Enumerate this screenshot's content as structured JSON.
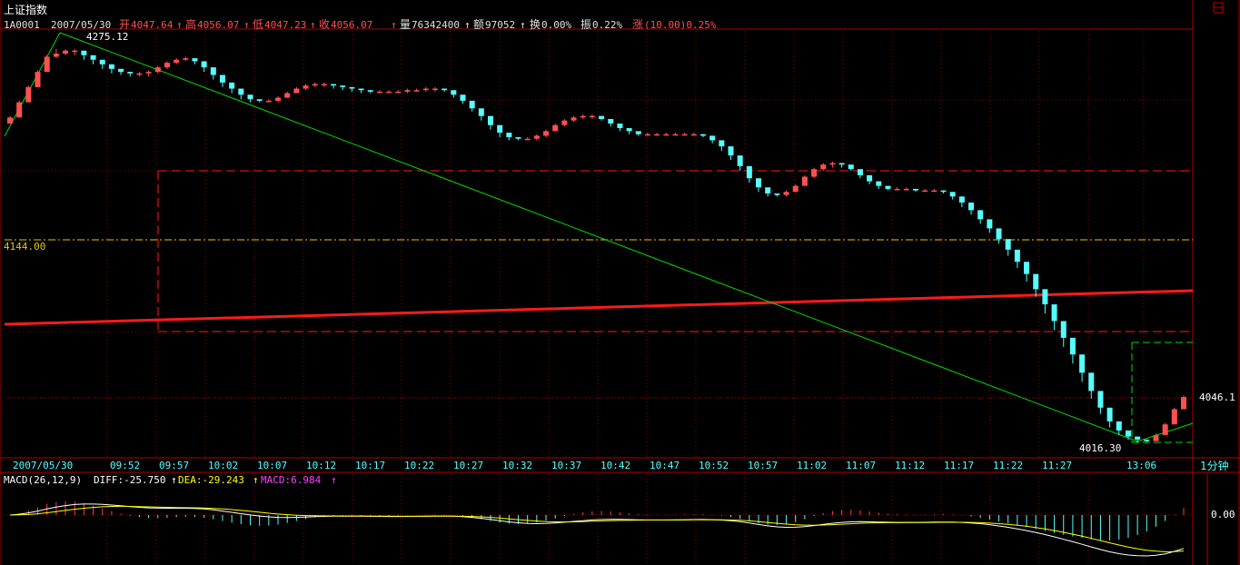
{
  "window": {
    "title": "上证指数",
    "corner_icon": "window-restore-icon",
    "period": "1分钟"
  },
  "header": {
    "code": "1A0001",
    "date": "2007/05/30",
    "open_label": "开",
    "open": "4047.64",
    "open_arrow": "↑",
    "high_label": "高",
    "high": "4056.07",
    "high_arrow": "↑",
    "low_label": "低",
    "low": "4047.23",
    "low_arrow": "↑",
    "close_label": "收",
    "close": "4056.07",
    "close_arrow": "↑",
    "volume_label": "量",
    "volume": "76342400",
    "volume_arrow": "↑",
    "amount_label": "额",
    "amount": "97052",
    "amount_arrow": "↑",
    "turnover_label": "换",
    "turnover": "0.00%",
    "amplitude_label": "振",
    "amplitude": "0.22%",
    "change_label": "涨",
    "change": "(10.00)0.25%"
  },
  "colors": {
    "up": "#ff5050",
    "down": "#54ffff",
    "frame": "#b00000",
    "grid": "#8b0000",
    "axis_text": "#54ffff",
    "trendline": "#00dd00",
    "channel": "#ff1a1a",
    "level": "#e6c800",
    "white_line": "#ffffff",
    "yellow_line": "#ffff00",
    "macd_up": "#ff4040",
    "macd_down": "#54ffff",
    "magenta": "#ff40ff"
  },
  "main": {
    "y_label_left": "4144.00",
    "y_label_right": "4046.1",
    "peak_label": "4275.12",
    "trough_label": "4016.30"
  },
  "chart_data": [
    {
      "type": "candlestick",
      "title": "上证指数",
      "x_tick_labels": [
        "2007/05/30",
        "09:52",
        "09:57",
        "10:02",
        "10:07",
        "10:12",
        "10:17",
        "10:22",
        "10:27",
        "10:32",
        "10:37",
        "10:42",
        "10:47",
        "10:52",
        "10:57",
        "11:02",
        "11:07",
        "11:12",
        "11:17",
        "11:22",
        "11:27",
        "13:06"
      ],
      "ylim": [
        4006,
        4287
      ],
      "closes": [
        4230,
        4240,
        4250,
        4260,
        4270,
        4272,
        4274,
        4274,
        4271,
        4268,
        4265,
        4262,
        4260,
        4259,
        4259,
        4260,
        4263,
        4266,
        4268,
        4269,
        4267,
        4263,
        4258,
        4253,
        4249,
        4245,
        4242,
        4241,
        4241,
        4243,
        4246,
        4249,
        4251,
        4252,
        4252,
        4251,
        4250,
        4249,
        4248,
        4247,
        4247,
        4247,
        4247,
        4248,
        4248,
        4249,
        4249,
        4248,
        4245,
        4241,
        4236,
        4231,
        4225,
        4220,
        4217,
        4216,
        4216,
        4218,
        4221,
        4225,
        4228,
        4230,
        4231,
        4231,
        4229,
        4226,
        4223,
        4221,
        4219,
        4219,
        4219,
        4219,
        4219,
        4219,
        4219,
        4218,
        4215,
        4211,
        4205,
        4198,
        4190,
        4184,
        4180,
        4179,
        4181,
        4185,
        4191,
        4196,
        4199,
        4200,
        4199,
        4196,
        4192,
        4188,
        4185,
        4183,
        4183,
        4183,
        4182,
        4182,
        4182,
        4181,
        4178,
        4174,
        4169,
        4163,
        4157,
        4150,
        4143,
        4135,
        4127,
        4117,
        4107,
        4096,
        4085,
        4074,
        4062,
        4050,
        4039,
        4030,
        4024,
        4020,
        4018,
        4017,
        4021,
        4028,
        4038,
        4046
      ],
      "highs": [
        4231,
        4241,
        4251,
        4261,
        4271,
        4275.12,
        4275,
        4275,
        4272,
        4269,
        4266,
        4263,
        4261,
        4260,
        4260,
        4261,
        4264,
        4267,
        4269,
        4270,
        4268,
        4264,
        4259,
        4254,
        4250,
        4246,
        4243,
        4242,
        4242,
        4244,
        4247,
        4250,
        4252,
        4253,
        4253,
        4252,
        4251,
        4250,
        4249,
        4248,
        4248,
        4248,
        4248,
        4249,
        4249,
        4250,
        4250,
        4249,
        4246,
        4242,
        4237,
        4232,
        4226,
        4221,
        4218,
        4217,
        4217,
        4219,
        4222,
        4226,
        4229,
        4231,
        4232,
        4232,
        4230,
        4227,
        4224,
        4222,
        4220,
        4220,
        4220,
        4220,
        4220,
        4220,
        4220,
        4219,
        4216,
        4212,
        4206,
        4199,
        4191,
        4185,
        4181,
        4180,
        4182,
        4186,
        4192,
        4197,
        4200,
        4201,
        4200,
        4197,
        4193,
        4189,
        4186,
        4184,
        4184,
        4184,
        4183,
        4183,
        4183,
        4182,
        4179,
        4175,
        4170,
        4164,
        4158,
        4151,
        4144,
        4136,
        4128,
        4118,
        4108,
        4097,
        4086,
        4075,
        4063,
        4051,
        4040,
        4031,
        4025,
        4021,
        4019,
        4018,
        4022,
        4029,
        4039,
        4047
      ],
      "lows": [
        4226,
        4233,
        4243,
        4252,
        4262,
        4269,
        4271,
        4271,
        4268,
        4265,
        4262,
        4259,
        4258,
        4257,
        4257,
        4257,
        4259,
        4262,
        4265,
        4267,
        4265,
        4260,
        4255,
        4250,
        4246,
        4242,
        4240,
        4240,
        4240,
        4240,
        4243,
        4246,
        4248,
        4250,
        4250,
        4249,
        4248,
        4247,
        4246,
        4246,
        4246,
        4246,
        4246,
        4246,
        4247,
        4247,
        4247,
        4247,
        4243,
        4239,
        4234,
        4228,
        4222,
        4217,
        4215,
        4215,
        4215,
        4215,
        4217,
        4221,
        4224,
        4227,
        4229,
        4229,
        4228,
        4224,
        4221,
        4219,
        4218,
        4218,
        4218,
        4218,
        4218,
        4218,
        4218,
        4217,
        4213,
        4208,
        4202,
        4195,
        4187,
        4181,
        4178,
        4178,
        4178,
        4181,
        4185,
        4190,
        4195,
        4197,
        4197,
        4195,
        4190,
        4186,
        4183,
        4182,
        4182,
        4182,
        4181,
        4181,
        4181,
        4180,
        4176,
        4171,
        4166,
        4160,
        4154,
        4147,
        4139,
        4131,
        4122,
        4112,
        4101,
        4090,
        4079,
        4068,
        4056,
        4045,
        4035,
        4026,
        4021,
        4018,
        4016.3,
        4016.3,
        4017,
        4021,
        4028,
        4038
      ]
    },
    {
      "type": "line",
      "title": "MACD(26,12,9)",
      "legend": [
        "DIFF:-25.750",
        "DEA:-29.243",
        "MACD:6.984"
      ],
      "zero_label": "0.00",
      "ylim": [
        -40,
        25
      ]
    }
  ],
  "macd_legend": {
    "name": "MACD(26,12,9)",
    "diff": "DIFF:-25.750",
    "diff_arrow": "↑",
    "dea": "DEA:-29.243",
    "dea_arrow": "↑",
    "macd": "MACD:6.984",
    "macd_arrow": "↑",
    "zero": "0.00"
  }
}
